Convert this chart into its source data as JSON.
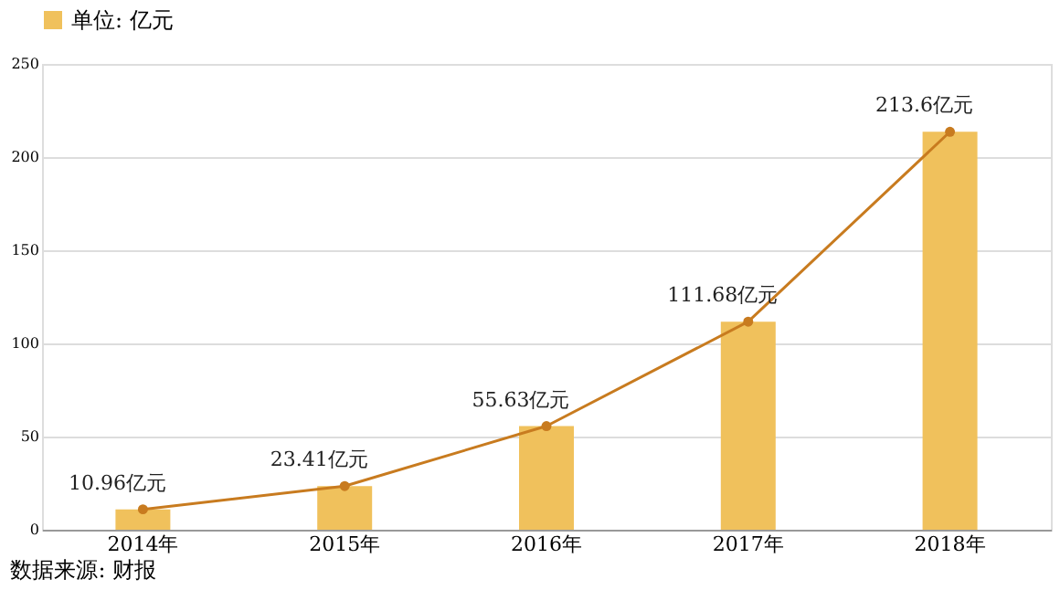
{
  "chart_data": {
    "type": "bar",
    "categories": [
      "2014年",
      "2015年",
      "2016年",
      "2017年",
      "2018年"
    ],
    "series": [
      {
        "name": "单位: 亿元",
        "color": "#f0c15c",
        "values": [
          10.96,
          23.41,
          55.63,
          111.68,
          213.6
        ]
      },
      {
        "type": "line",
        "color": "#c87b1f",
        "values": [
          10.96,
          23.41,
          55.63,
          111.68,
          213.6
        ],
        "value_labels": [
          "10.96亿元",
          "23.41亿元",
          "55.63亿元",
          "111.68亿元",
          "213.6亿元"
        ]
      }
    ],
    "ylim": [
      0,
      250
    ],
    "yticks": [
      0,
      50,
      100,
      150,
      200,
      250
    ],
    "grid": "y",
    "legend": "top left",
    "marker": "circle",
    "annotations": [
      "数据来源: 财报"
    ]
  }
}
